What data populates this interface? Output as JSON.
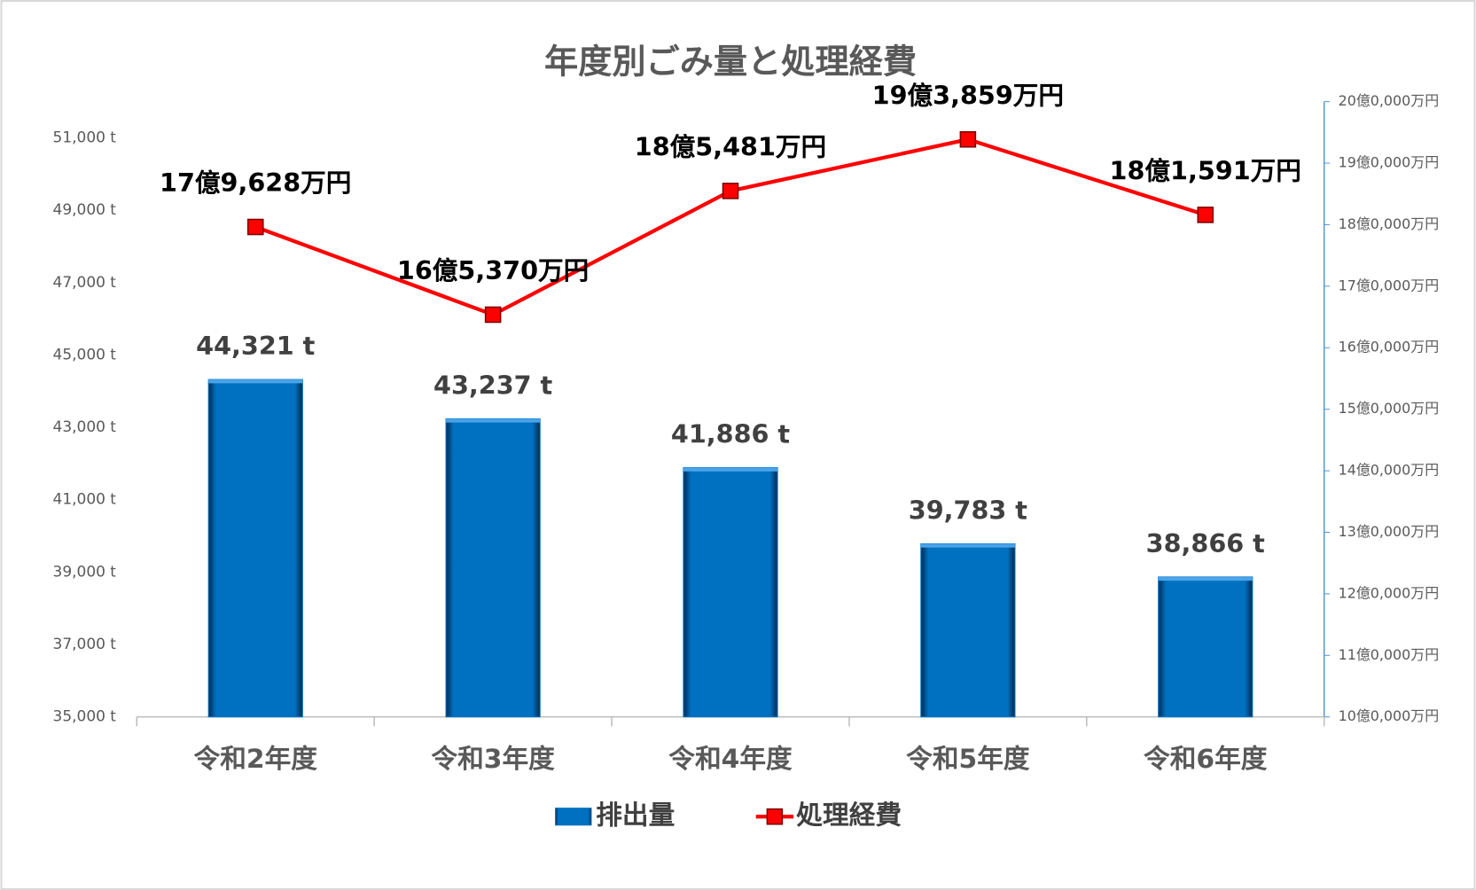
{
  "chart_data": {
    "type": "bar",
    "title": "年度別ごみ量と処理経費",
    "categories": [
      "令和2年度",
      "令和3年度",
      "令和4年度",
      "令和5年度",
      "令和6年度"
    ],
    "series": [
      {
        "name": "排出量",
        "type": "bar",
        "color": "#0070c0",
        "values": [
          44321,
          43237,
          41886,
          39783,
          38866
        ],
        "value_labels": [
          "44,321 t",
          "43,237 t",
          "41,886 t",
          "39,783 t",
          "38,866 t"
        ]
      },
      {
        "name": "処理経費",
        "type": "line",
        "axis": "y2",
        "color": "#ff0000",
        "values": [
          179628,
          165370,
          185481,
          193859,
          181591
        ],
        "value_labels": [
          "17億9,628万円",
          "16億5,370万円",
          "18億5,481万円",
          "19億3,859万円",
          "18億1,591万円"
        ]
      }
    ],
    "ylim": [
      35000,
      52000
    ],
    "yticks": [
      {
        "value": 35000,
        "label": "35,000 t"
      },
      {
        "value": 37000,
        "label": "37,000 t"
      },
      {
        "value": 39000,
        "label": "39,000 t"
      },
      {
        "value": 41000,
        "label": "41,000 t"
      },
      {
        "value": 43000,
        "label": "43,000 t"
      },
      {
        "value": 45000,
        "label": "45,000 t"
      },
      {
        "value": 47000,
        "label": "47,000 t"
      },
      {
        "value": 49000,
        "label": "49,000 t"
      },
      {
        "value": 51000,
        "label": "51,000 t"
      }
    ],
    "y2lim": [
      100000,
      200000
    ],
    "y2ticks": [
      {
        "value": 100000,
        "label": "10億0,000万円"
      },
      {
        "value": 110000,
        "label": "11億0,000万円"
      },
      {
        "value": 120000,
        "label": "12億0,000万円"
      },
      {
        "value": 130000,
        "label": "13億0,000万円"
      },
      {
        "value": 140000,
        "label": "14億0,000万円"
      },
      {
        "value": 150000,
        "label": "15億0,000万円"
      },
      {
        "value": 160000,
        "label": "16億0,000万円"
      },
      {
        "value": 170000,
        "label": "17億0,000万円"
      },
      {
        "value": 180000,
        "label": "18億0,000万円"
      },
      {
        "value": 190000,
        "label": "19億0,000万円"
      },
      {
        "value": 200000,
        "label": "20億0,000万円"
      }
    ],
    "legend": "bottom"
  }
}
